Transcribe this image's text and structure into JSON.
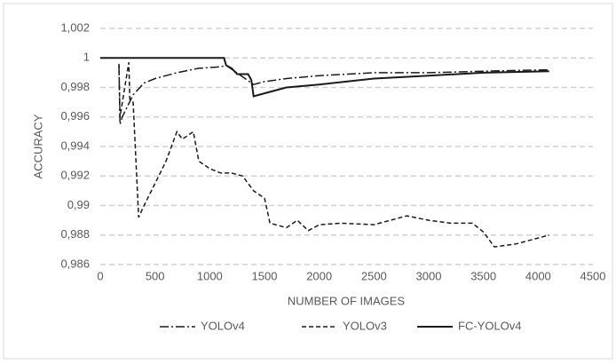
{
  "chart_data": {
    "type": "line",
    "ylabel": "ACCURACY",
    "xlabel": "NUMBER OF IMAGES",
    "xlim": [
      0,
      4500
    ],
    "xticks": [
      0,
      500,
      1000,
      1500,
      2000,
      2500,
      3000,
      3500,
      4000,
      4500
    ],
    "ylim": [
      0.986,
      1.002
    ],
    "yticks": [
      {
        "value": 0.986,
        "label": "0,986"
      },
      {
        "value": 0.988,
        "label": "0,988"
      },
      {
        "value": 0.99,
        "label": "0,99"
      },
      {
        "value": 0.992,
        "label": "0,992"
      },
      {
        "value": 0.994,
        "label": "0,994"
      },
      {
        "value": 0.996,
        "label": "0,996"
      },
      {
        "value": 0.998,
        "label": "0,998"
      },
      1,
      {
        "value": 1.002,
        "label": "1,002"
      }
    ],
    "grid": true,
    "legend": "bottom",
    "series": [
      {
        "name": "YOLOv4",
        "color": "#1a1a1a",
        "dash": "dash-dot",
        "x": [
          170,
          180,
          200,
          300,
          400,
          500,
          700,
          900,
          1100,
          1150,
          1400,
          1500,
          1700,
          2000,
          2500,
          3000,
          3500,
          4100
        ],
        "values": [
          0.9995,
          0.9955,
          0.996,
          0.9975,
          0.9983,
          0.9986,
          0.999,
          0.9993,
          0.9994,
          0.9995,
          0.9982,
          0.9984,
          0.9986,
          0.9988,
          0.999,
          0.999,
          0.9991,
          0.9992
        ]
      },
      {
        "name": "YOLOv3",
        "color": "#1a1a1a",
        "dash": "dashed",
        "x": [
          170,
          180,
          260,
          270,
          300,
          350,
          400,
          500,
          600,
          700,
          750,
          850,
          900,
          1000,
          1100,
          1200,
          1300,
          1400,
          1500,
          1550,
          1700,
          1800,
          1900,
          2000,
          2200,
          2500,
          2800,
          3000,
          3200,
          3400,
          3500,
          3600,
          3800,
          4000,
          4100
        ],
        "values": [
          0.9996,
          0.996,
          0.9997,
          0.9972,
          0.997,
          0.9892,
          0.99,
          0.9915,
          0.993,
          0.995,
          0.9945,
          0.995,
          0.993,
          0.9925,
          0.9922,
          0.9922,
          0.992,
          0.991,
          0.9905,
          0.9888,
          0.9885,
          0.989,
          0.9883,
          0.9887,
          0.9888,
          0.9887,
          0.9893,
          0.989,
          0.9888,
          0.9888,
          0.9882,
          0.9872,
          0.9874,
          0.9878,
          0.988
        ]
      },
      {
        "name": "FC-YOLOv4",
        "color": "#1a1a1a",
        "dash": "solid",
        "x": [
          0,
          1130,
          1150,
          1200,
          1250,
          1350,
          1380,
          1400,
          1500,
          1700,
          2000,
          2500,
          3000,
          3500,
          4100
        ],
        "values": [
          1,
          1,
          0.9995,
          0.9993,
          0.9989,
          0.9989,
          0.9985,
          0.9974,
          0.9976,
          0.998,
          0.9982,
          0.9986,
          0.9988,
          0.999,
          0.9991
        ]
      }
    ]
  }
}
